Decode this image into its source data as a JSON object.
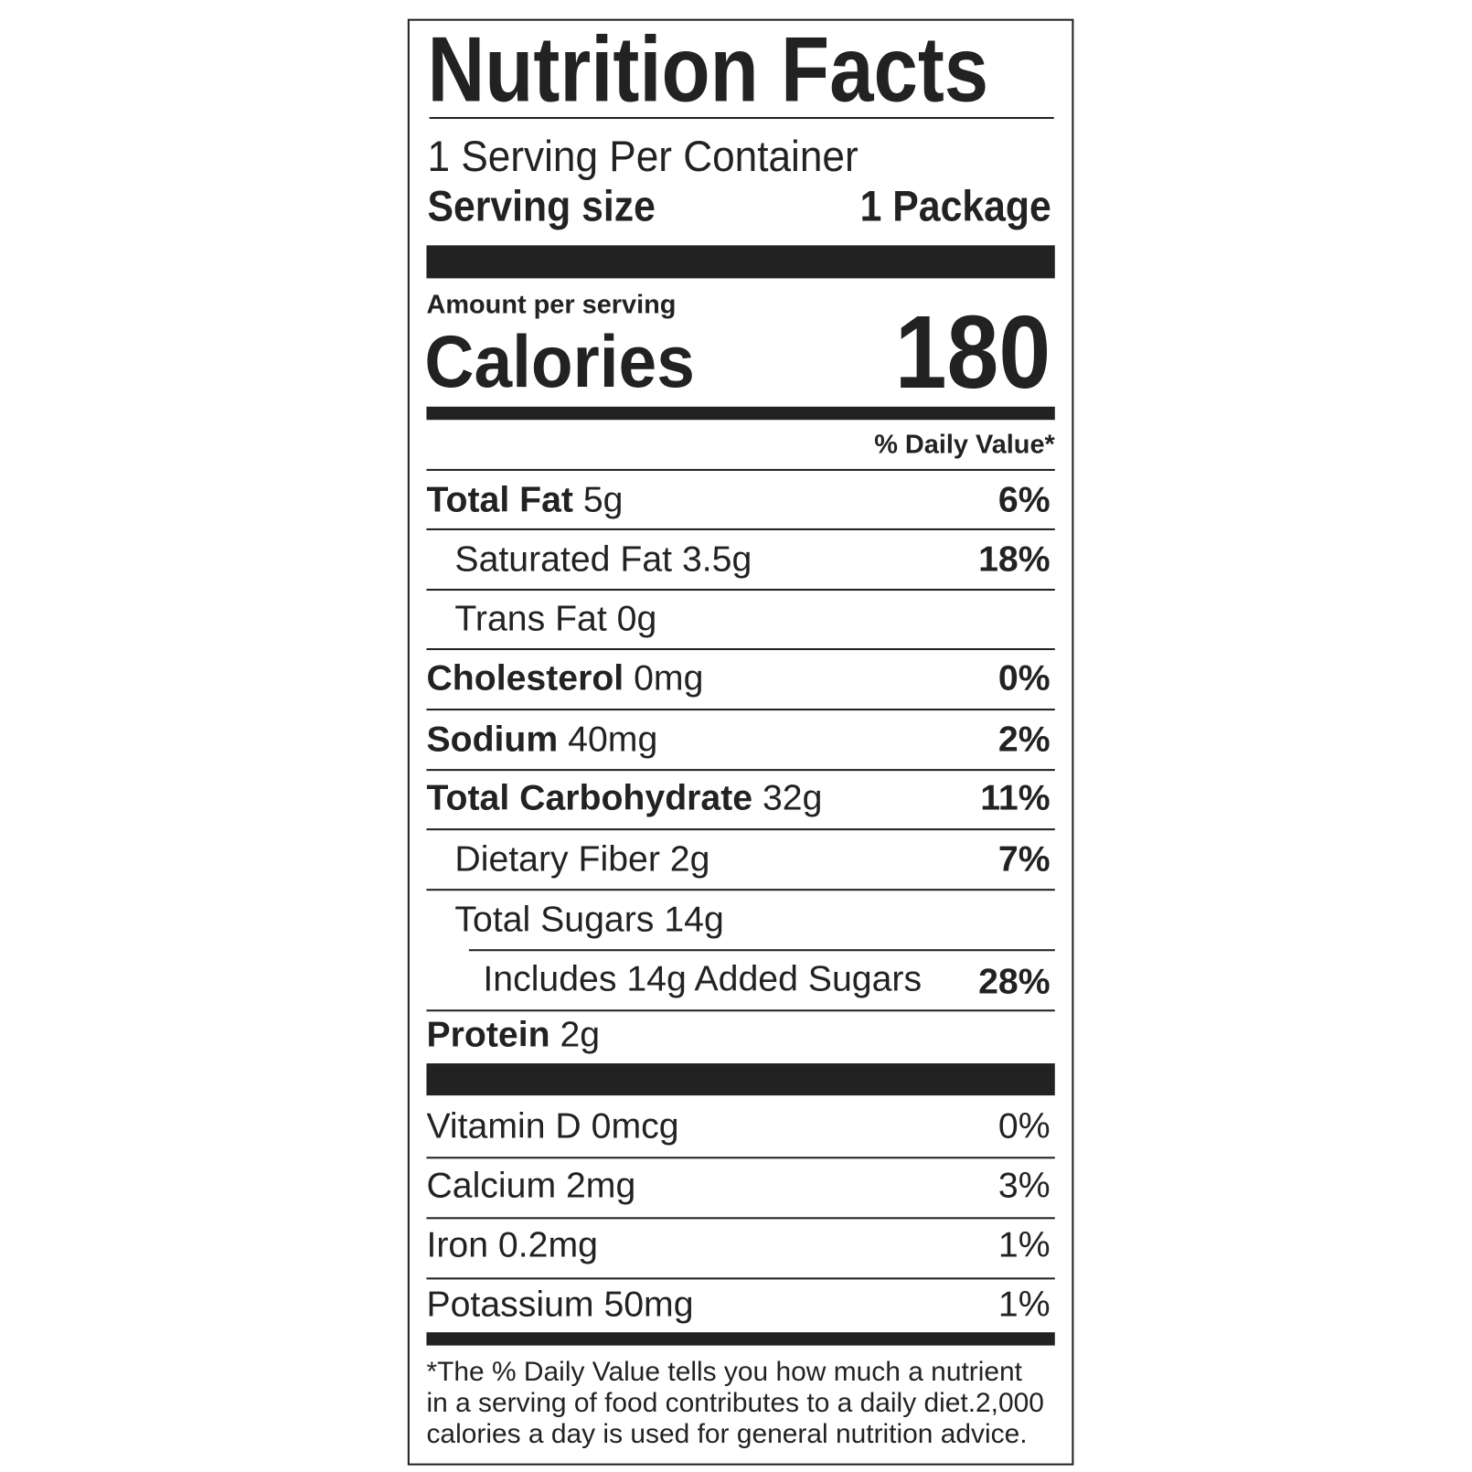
{
  "title": "Nutrition Facts",
  "servings_per_container": "1 Serving Per Container",
  "serving_size_label": "Serving size",
  "serving_size_value": "1 Package",
  "amount_per_serving": "Amount per serving",
  "calories_label": "Calories",
  "calories_value": "180",
  "daily_value_header": "% Daily Value*",
  "nutrients": [
    {
      "name": "Total Fat",
      "amount": "5g",
      "dv": "6%"
    },
    {
      "name": "Saturated Fat",
      "amount": "3.5g",
      "dv": "18%"
    },
    {
      "name": "Trans Fat",
      "amount": "0g",
      "dv": ""
    },
    {
      "name": "Cholesterol",
      "amount": "0mg",
      "dv": "0%"
    },
    {
      "name": "Sodium",
      "amount": "40mg",
      "dv": "2%"
    },
    {
      "name": "Total Carbohydrate",
      "amount": "32g",
      "dv": "11%"
    },
    {
      "name": "Dietary Fiber",
      "amount": "2g",
      "dv": "7%"
    },
    {
      "name": "Total Sugars",
      "amount": "14g",
      "dv": ""
    },
    {
      "name": "Includes 14g Added Sugars",
      "amount": "",
      "dv": "28%"
    },
    {
      "name": "Protein",
      "amount": "2g",
      "dv": ""
    }
  ],
  "vitamins": [
    {
      "name": "Vitamin D 0mcg",
      "dv": "0%"
    },
    {
      "name": "Calcium 2mg",
      "dv": "3%"
    },
    {
      "name": "Iron 0.2mg",
      "dv": "1%"
    },
    {
      "name": "Potassium 50mg",
      "dv": "1%"
    }
  ],
  "footnote": [
    "*The % Daily Value tells you how much a nutrient",
    "in a serving of food contributes to a daily diet.2,000",
    "calories a day is used for general nutrition advice."
  ]
}
